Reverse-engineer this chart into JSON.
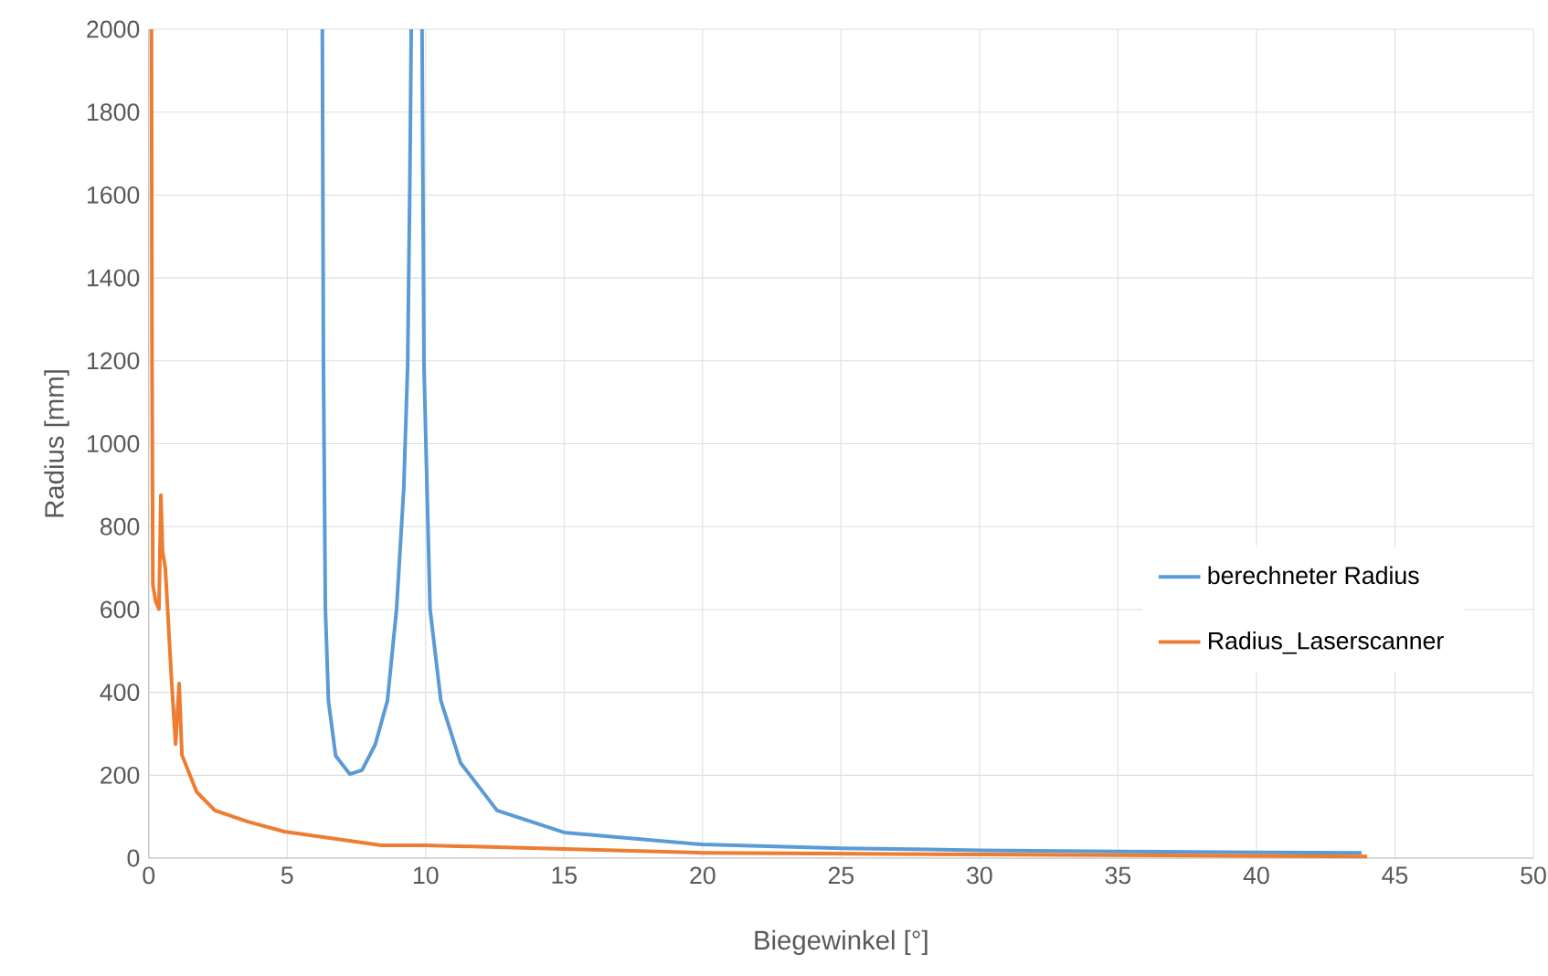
{
  "chart_data": {
    "type": "line",
    "xlabel": "Biegewinkel [°]",
    "ylabel": "Radius [mm]",
    "xlim": [
      0,
      50
    ],
    "ylim": [
      0,
      2000
    ],
    "xticks": [
      0,
      5,
      10,
      15,
      20,
      25,
      30,
      35,
      40,
      45,
      50
    ],
    "yticks": [
      0,
      200,
      400,
      600,
      800,
      1000,
      1200,
      1400,
      1600,
      1800,
      2000
    ],
    "grid": true,
    "legend": "right",
    "marker": "none",
    "line_style": "solid",
    "series": [
      {
        "name": "berechneter Radius",
        "color": "#5b9bd5",
        "x": [
          6.27,
          6.31,
          6.38,
          6.49,
          6.75,
          7.26,
          7.7,
          8.18,
          8.62,
          8.95,
          9.21,
          9.35,
          9.43,
          9.48,
          9.7,
          9.87,
          9.94,
          10.16,
          10.55,
          11.26,
          12.58,
          15,
          20,
          25,
          30,
          35,
          40,
          43.8
        ],
        "values": [
          2000,
          1188,
          601,
          380,
          247,
          203,
          212,
          274,
          380,
          601,
          892,
          1188,
          1630,
          2000,
          null,
          2000,
          1188,
          601,
          380,
          230,
          115,
          62,
          33,
          24,
          19,
          16,
          14,
          13
        ]
      },
      {
        "name": "Radius_Laserscanner",
        "color": "#ed7d31",
        "x": [
          0.1,
          0.12,
          0.15,
          0.25,
          0.37,
          0.44,
          0.5,
          0.6,
          0.82,
          0.97,
          1.1,
          1.2,
          1.73,
          2.39,
          3.58,
          4.9,
          8.4,
          10,
          15,
          20,
          30,
          44
        ],
        "values": [
          2000,
          1200,
          660,
          620,
          601,
          876,
          740,
          700,
          435,
          275,
          421,
          249,
          160,
          115,
          88,
          64,
          31,
          31,
          22,
          13,
          9,
          4
        ]
      }
    ]
  }
}
